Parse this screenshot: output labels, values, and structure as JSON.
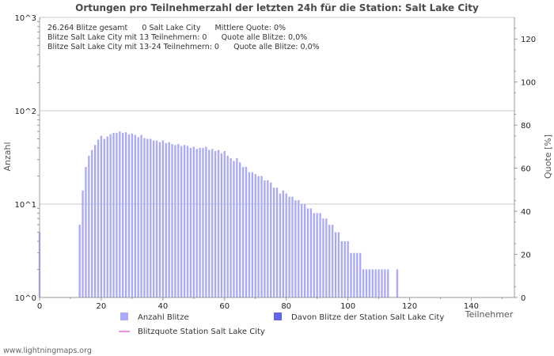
{
  "chart_data": {
    "type": "bar",
    "title": "Ortungen pro Teilnehmerzahl der letzten 24h für die Station: Salt Lake City",
    "xlabel": "Teilnehmer",
    "ylabel": "Anzahl",
    "y2label": "Quote [%]",
    "y_scale": "log",
    "xlim": [
      0,
      154
    ],
    "ylim_log_exp": [
      0,
      3
    ],
    "y2lim": [
      0,
      130
    ],
    "x_ticks": [
      "0",
      "20",
      "40",
      "60",
      "80",
      "100",
      "120",
      "140"
    ],
    "y_ticks": [
      "10^0",
      "10^1",
      "10^2",
      "10^3"
    ],
    "y2_ticks": [
      "0",
      "20",
      "40",
      "60",
      "80",
      "100",
      "120"
    ],
    "info_lines": [
      "26.264 Blitze gesamt      0 Salt Lake City      Mittlere Quote: 0%",
      "Blitze Salt Lake City mit 13 Teilnehmern: 0      Quote alle Blitze: 0,0%",
      "Blitze Salt Lake City mit 13-24 Teilnehmern: 0      Quote alle Blitze: 0,0%"
    ],
    "legend": {
      "total": "Anzahl Blitze",
      "station": "Davon Blitze der Station Salt Lake City",
      "quote": "Blitzquote Station Salt Lake City"
    },
    "colors": {
      "total": "#aaaaf8",
      "station": "#6464e8",
      "quote": "#e070d0",
      "grid": "#c8c8c8"
    },
    "series": [
      {
        "name": "Anzahl Blitze",
        "x": [
          0,
          13,
          14,
          15,
          16,
          17,
          18,
          19,
          20,
          21,
          22,
          23,
          24,
          25,
          26,
          27,
          28,
          29,
          30,
          31,
          32,
          33,
          34,
          35,
          36,
          37,
          38,
          39,
          40,
          41,
          42,
          43,
          44,
          45,
          46,
          47,
          48,
          49,
          50,
          51,
          52,
          53,
          54,
          55,
          56,
          57,
          58,
          59,
          60,
          61,
          62,
          63,
          64,
          65,
          66,
          67,
          68,
          69,
          70,
          71,
          72,
          73,
          74,
          75,
          76,
          77,
          78,
          79,
          80,
          81,
          82,
          83,
          84,
          85,
          86,
          87,
          88,
          89,
          90,
          91,
          92,
          93,
          94,
          95,
          96,
          97,
          98,
          99,
          100,
          101,
          102,
          103,
          104,
          105,
          106,
          107,
          108,
          109,
          110,
          111,
          112,
          113,
          114,
          115,
          116,
          117,
          118,
          119,
          120,
          121,
          122,
          123,
          124,
          125,
          126,
          127,
          128,
          129,
          130,
          131,
          132,
          133,
          134,
          135,
          136,
          137,
          138,
          139,
          140,
          141,
          145,
          147,
          149
        ],
        "values": [
          5,
          6,
          14,
          25,
          33,
          38,
          43,
          49,
          54,
          50,
          53,
          56,
          58,
          58,
          60,
          58,
          59,
          56,
          57,
          55,
          52,
          55,
          51,
          50,
          50,
          48,
          48,
          46,
          48,
          45,
          46,
          44,
          43,
          44,
          42,
          43,
          42,
          40,
          41,
          39,
          40,
          40,
          41,
          38,
          39,
          37,
          38,
          35,
          37,
          33,
          31,
          29,
          31,
          28,
          25,
          25,
          22,
          22,
          21,
          20,
          20,
          18,
          18,
          17,
          15,
          15,
          13,
          14,
          13,
          12,
          12,
          11,
          11,
          10,
          10,
          9,
          9,
          8,
          8,
          8,
          7,
          7,
          6,
          6,
          5,
          5,
          4,
          4,
          4,
          3,
          3,
          3,
          3,
          2,
          2,
          2,
          2,
          2,
          2,
          2,
          2,
          2,
          1,
          1,
          2,
          1,
          1,
          1,
          1,
          1,
          1,
          1,
          1,
          1,
          1,
          1,
          1,
          1,
          1,
          1,
          1,
          1,
          1,
          1,
          1,
          1,
          1,
          1,
          1,
          1,
          1,
          1,
          1
        ]
      },
      {
        "name": "Davon Blitze der Station Salt Lake City",
        "x": [],
        "values": []
      }
    ]
  },
  "footer": {
    "site": "www.lightningmaps.org"
  }
}
